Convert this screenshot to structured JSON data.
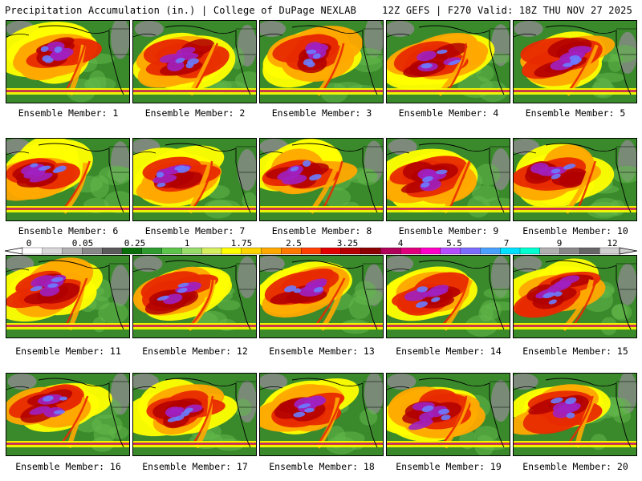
{
  "header": {
    "left": "Precipitation Accumulation (in.) | College of DuPage NEXLAB",
    "right": "12Z GEFS | F270 Valid: 18Z THU NOV 27 2025"
  },
  "member_prefix": "Ensemble Member: ",
  "members": [
    1,
    2,
    3,
    4,
    5,
    6,
    7,
    8,
    9,
    10,
    11,
    12,
    13,
    14,
    15,
    16,
    17,
    18,
    19,
    20
  ],
  "legend": {
    "tick_labels": [
      "0",
      "0.05",
      "0.25",
      "1",
      "1.75",
      "2.5",
      "3.25",
      "4",
      "5.5",
      "7",
      "9",
      "12"
    ],
    "colors": [
      "#ffffff",
      "#d8d8d8",
      "#b0b0b0",
      "#888888",
      "#5a5a5a",
      "#0a6d0a",
      "#2f9a2f",
      "#5cc44a",
      "#98dc6a",
      "#d4ee5e",
      "#ffff00",
      "#ffd400",
      "#ffa800",
      "#ff7800",
      "#ff4000",
      "#e00000",
      "#b40000",
      "#8c0000",
      "#b0005a",
      "#e0007e",
      "#ff00c8",
      "#b44cff",
      "#7a6cff",
      "#4aa0ff",
      "#00e0ff",
      "#00ffd0",
      "#b0b0b0",
      "#888888",
      "#666666",
      "#d0d0d0"
    ]
  },
  "map_colors": {
    "land": "#3a8a2c",
    "land_light": "#62b84a",
    "terrain": "#8a8a8a",
    "yellow": "#ffff00",
    "orange": "#ffa800",
    "red": "#e82a00",
    "darkred": "#b00000",
    "purple": "#a020c0",
    "blue": "#6a7cff",
    "border": "#000000"
  }
}
